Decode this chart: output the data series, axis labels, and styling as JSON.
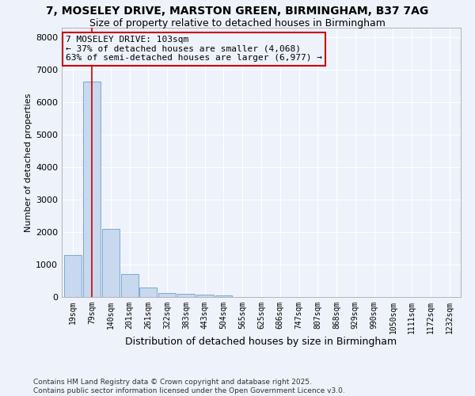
{
  "title1": "7, MOSELEY DRIVE, MARSTON GREEN, BIRMINGHAM, B37 7AG",
  "title2": "Size of property relative to detached houses in Birmingham",
  "xlabel": "Distribution of detached houses by size in Birmingham",
  "ylabel": "Number of detached properties",
  "categories": [
    "19sqm",
    "79sqm",
    "140sqm",
    "201sqm",
    "261sqm",
    "322sqm",
    "383sqm",
    "443sqm",
    "504sqm",
    "565sqm",
    "625sqm",
    "686sqm",
    "747sqm",
    "807sqm",
    "868sqm",
    "929sqm",
    "990sqm",
    "1050sqm",
    "1111sqm",
    "1172sqm",
    "1232sqm"
  ],
  "values": [
    1300,
    6650,
    2100,
    700,
    300,
    130,
    100,
    80,
    60,
    0,
    0,
    0,
    0,
    0,
    0,
    0,
    0,
    0,
    0,
    0,
    0
  ],
  "bar_color": "#c8d8ee",
  "bar_edgecolor": "#7aaad0",
  "bar_linewidth": 0.7,
  "vline_x": 1,
  "vline_color": "#cc0000",
  "annotation_line1": "7 MOSELEY DRIVE: 103sqm",
  "annotation_line2": "← 37% of detached houses are smaller (4,068)",
  "annotation_line3": "63% of semi-detached houses are larger (6,977) →",
  "annotation_box_edgecolor": "#cc0000",
  "ylim": [
    0,
    8300
  ],
  "yticks": [
    0,
    1000,
    2000,
    3000,
    4000,
    5000,
    6000,
    7000,
    8000
  ],
  "background_color": "#eef2fb",
  "plot_bg_color": "#eef2fb",
  "grid_color": "#ffffff",
  "footer": "Contains HM Land Registry data © Crown copyright and database right 2025.\nContains public sector information licensed under the Open Government Licence v3.0.",
  "title_fontsize": 10,
  "subtitle_fontsize": 9,
  "annotation_fontsize": 8
}
